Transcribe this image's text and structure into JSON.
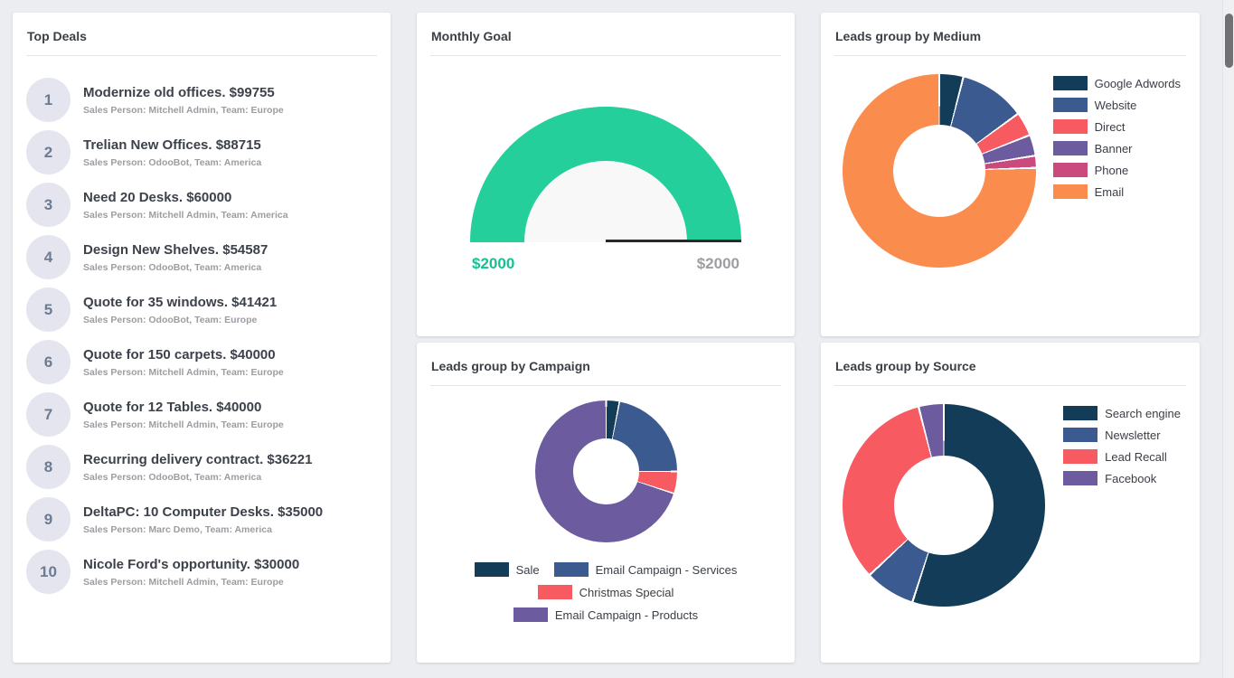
{
  "page": {
    "background": "#ecedf1"
  },
  "top_deals": {
    "title": "Top Deals",
    "items": [
      {
        "rank": "1",
        "title": "Modernize old offices. $99755",
        "subtitle": "Sales Person: Mitchell Admin, Team: Europe"
      },
      {
        "rank": "2",
        "title": "Trelian New Offices. $88715",
        "subtitle": "Sales Person: OdooBot, Team: America"
      },
      {
        "rank": "3",
        "title": "Need 20 Desks. $60000",
        "subtitle": "Sales Person: Mitchell Admin, Team: America"
      },
      {
        "rank": "4",
        "title": "Design New Shelves. $54587",
        "subtitle": "Sales Person: OdooBot, Team: America"
      },
      {
        "rank": "5",
        "title": "Quote for 35 windows. $41421",
        "subtitle": "Sales Person: OdooBot, Team: Europe"
      },
      {
        "rank": "6",
        "title": "Quote for 150 carpets. $40000",
        "subtitle": "Sales Person: Mitchell Admin, Team: Europe"
      },
      {
        "rank": "7",
        "title": "Quote for 12 Tables. $40000",
        "subtitle": "Sales Person: Mitchell Admin, Team: Europe"
      },
      {
        "rank": "8",
        "title": "Recurring delivery contract. $36221",
        "subtitle": "Sales Person: OdooBot, Team: America"
      },
      {
        "rank": "9",
        "title": "DeltaPC: 10 Computer Desks. $35000",
        "subtitle": "Sales Person: Marc Demo, Team: America"
      },
      {
        "rank": "10",
        "title": "Nicole Ford's opportunity. $30000",
        "subtitle": "Sales Person: Mitchell Admin, Team: Europe"
      }
    ]
  },
  "chart_data": [
    {
      "type": "gauge",
      "title": "Monthly Goal",
      "value": 2000,
      "goal": 2000,
      "value_label": "$2000",
      "goal_label": "$2000",
      "color": "#24cf9c",
      "track_color": "#ebebeb",
      "hole_color": "#f8f8f8",
      "value_color": "#17bf92",
      "goal_color": "#9d9da2",
      "marker_color": "#26282b"
    },
    {
      "type": "pie",
      "title": "Leads group by Medium",
      "legend_position": "right",
      "unit": "percent",
      "labels": [
        "Google Adwords",
        "Website",
        "Direct",
        "Banner",
        "Phone",
        "Email"
      ],
      "values": [
        4,
        11,
        4,
        3.5,
        2,
        75.5
      ],
      "colors": [
        "#123c57",
        "#3b5a8f",
        "#f75a60",
        "#6c5b9e",
        "#cb4a7d",
        "#fa8d4d"
      ]
    },
    {
      "type": "pie",
      "title": "Leads group by Campaign",
      "legend_position": "bottom",
      "unit": "percent",
      "labels": [
        "Sale",
        "Email Campaign - Services",
        "Christmas Special",
        "Email Campaign - Products"
      ],
      "values": [
        3,
        22,
        5,
        70
      ],
      "colors": [
        "#123c57",
        "#3b5a8f",
        "#f75a60",
        "#6c5b9e"
      ]
    },
    {
      "type": "pie",
      "title": "Leads group by Source",
      "legend_position": "right",
      "unit": "percent",
      "labels": [
        "Search engine",
        "Newsletter",
        "Lead Recall",
        "Facebook"
      ],
      "values": [
        55,
        8,
        33,
        4
      ],
      "colors": [
        "#123c57",
        "#3b5a8f",
        "#f75a60",
        "#6c5b9e"
      ]
    }
  ]
}
